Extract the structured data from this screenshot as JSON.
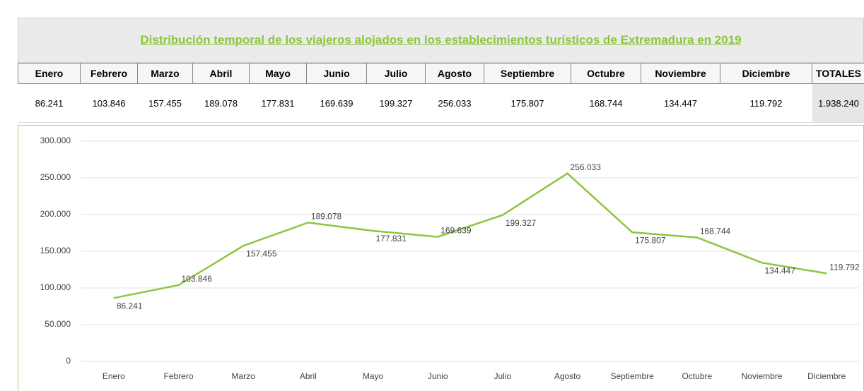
{
  "title": "Distribución temporal de los viajeros alojados en los establecimientos turísticos de Extremadura en 2019",
  "table": {
    "headers": [
      "Enero",
      "Febrero",
      "Marzo",
      "Abril",
      "Mayo",
      "Junio",
      "Julio",
      "Agosto",
      "Septiembre",
      "Octubre",
      "Noviembre",
      "Diciembre",
      "TOTALES"
    ],
    "rows": [
      [
        "86.241",
        "103.846",
        "157.455",
        "189.078",
        "177.831",
        "169.639",
        "199.327",
        "256.033",
        "175.807",
        "168.744",
        "134.447",
        "119.792",
        "1.938.240"
      ]
    ]
  },
  "chart_data": {
    "type": "line",
    "categories": [
      "Enero",
      "Febrero",
      "Marzo",
      "Abril",
      "Mayo",
      "Junio",
      "Julio",
      "Agosto",
      "Septiembre",
      "Octubre",
      "Noviembre",
      "Diciembre"
    ],
    "values": [
      86241,
      103846,
      157455,
      189078,
      177831,
      169639,
      199327,
      256033,
      175807,
      168744,
      134447,
      119792
    ],
    "value_labels": [
      "86.241",
      "103.846",
      "157.455",
      "189.078",
      "177.831",
      "169.639",
      "199.327",
      "256.033",
      "175.807",
      "168.744",
      "134.447",
      "119.792"
    ],
    "color": "#8cc63f",
    "ylim": [
      0,
      300000
    ],
    "yticks": [
      0,
      {
        "value": 50000,
        "label": "50.000"
      },
      {
        "value": 100000,
        "label": "100.000"
      },
      {
        "value": 150000,
        "label": "150.000"
      },
      {
        "value": 200000,
        "label": "200.000"
      },
      {
        "value": 250000,
        "label": "250.000"
      },
      {
        "value": 300000,
        "label": "300.000"
      }
    ],
    "grid": true
  }
}
